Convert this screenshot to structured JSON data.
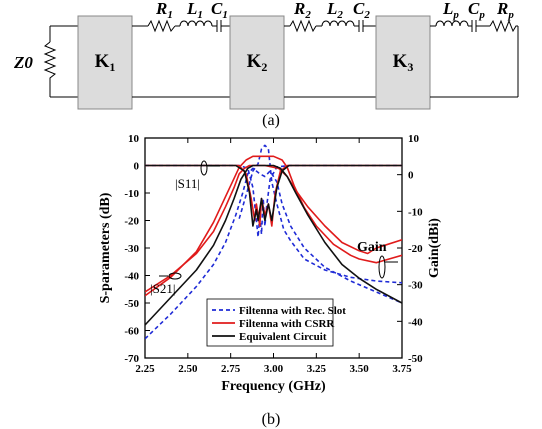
{
  "circuit": {
    "source": "Z0",
    "blocks": [
      {
        "name": "K",
        "sub": "1"
      },
      {
        "name": "K",
        "sub": "2"
      },
      {
        "name": "K",
        "sub": "3"
      }
    ],
    "components": [
      {
        "name": "R",
        "sub": "1",
        "kind": "resistor"
      },
      {
        "name": "L",
        "sub": "1",
        "kind": "inductor"
      },
      {
        "name": "C",
        "sub": "1",
        "kind": "capacitor"
      },
      {
        "name": "R",
        "sub": "2",
        "kind": "resistor"
      },
      {
        "name": "L",
        "sub": "2",
        "kind": "inductor"
      },
      {
        "name": "C",
        "sub": "2",
        "kind": "capacitor"
      },
      {
        "name": "L",
        "sub": "p",
        "kind": "inductor"
      },
      {
        "name": "C",
        "sub": "p",
        "kind": "capacitor"
      },
      {
        "name": "R",
        "sub": "p",
        "kind": "resistor"
      }
    ],
    "caption": "(a)"
  },
  "chart_caption": "(b)",
  "chart_data": {
    "type": "line",
    "xlabel": "Frequency (GHz)",
    "ylabel": "S-parameters (dB)",
    "y2label": "Gain(dBi)",
    "xlim": [
      2.25,
      3.75
    ],
    "ylim": [
      -70,
      10
    ],
    "y2lim": [
      -50,
      10
    ],
    "xticks": [
      "2.25",
      "2.50",
      "2.75",
      "3.00",
      "3.25",
      "3.50",
      "3.75"
    ],
    "yticks": [
      "10",
      "0",
      "-10",
      "-20",
      "-30",
      "-40",
      "-50",
      "-60",
      "-70"
    ],
    "y2ticks": [
      "10",
      "0",
      "-10",
      "-20",
      "-30",
      "-40",
      "-50"
    ],
    "legend_position": "bottom-center",
    "annotations": {
      "s11_label": "|S11|",
      "s21_label": "|S21|",
      "gain_label": "Gain"
    },
    "series": [
      {
        "name": "Filtenna with Rec. Slot",
        "color": "#1f2bd6",
        "dash": "dashed",
        "curves": [
          {
            "axis": "left",
            "role": "S21",
            "points": [
              [
                2.25,
                -63
              ],
              [
                2.4,
                -54
              ],
              [
                2.55,
                -44
              ],
              [
                2.65,
                -36
              ],
              [
                2.72,
                -28
              ],
              [
                2.78,
                -18
              ],
              [
                2.82,
                -10
              ],
              [
                2.85,
                -3
              ],
              [
                2.88,
                -1
              ],
              [
                2.92,
                -3
              ],
              [
                2.95,
                -4
              ],
              [
                2.98,
                -2
              ],
              [
                3.02,
                -6
              ],
              [
                3.05,
                -14
              ],
              [
                3.1,
                -22
              ],
              [
                3.18,
                -30
              ],
              [
                3.3,
                -37
              ],
              [
                3.45,
                -42
              ],
              [
                3.6,
                -46
              ],
              [
                3.75,
                -50
              ]
            ]
          },
          {
            "axis": "left",
            "role": "S11",
            "points": [
              [
                2.25,
                0
              ],
              [
                2.8,
                0
              ],
              [
                2.85,
                -1
              ],
              [
                2.88,
                -8
              ],
              [
                2.9,
                -20
              ],
              [
                2.91,
                -26
              ],
              [
                2.92,
                -18
              ],
              [
                2.93,
                -25
              ],
              [
                2.94,
                -12
              ],
              [
                2.95,
                -22
              ],
              [
                2.96,
                -15
              ],
              [
                2.98,
                -5
              ],
              [
                3.02,
                -0.5
              ],
              [
                3.1,
                0
              ],
              [
                3.75,
                0
              ]
            ]
          },
          {
            "axis": "right",
            "role": "Gain",
            "points": [
              [
                2.8,
                -12
              ],
              [
                2.85,
                -4
              ],
              [
                2.88,
                1
              ],
              [
                2.91,
                3
              ],
              [
                2.93,
                7
              ],
              [
                2.95,
                8
              ],
              [
                2.97,
                7
              ],
              [
                2.99,
                -2
              ],
              [
                3.02,
                -8
              ],
              [
                3.06,
                -15
              ],
              [
                3.1,
                -18
              ],
              [
                3.18,
                -23
              ],
              [
                3.3,
                -26
              ],
              [
                3.45,
                -28
              ],
              [
                3.6,
                -29
              ],
              [
                3.75,
                -29.5
              ]
            ]
          }
        ]
      },
      {
        "name": "Filtenna with CSRR",
        "color": "#e01b1b",
        "dash": "solid",
        "curves": [
          {
            "axis": "left",
            "role": "S21",
            "points": [
              [
                2.25,
                -46
              ],
              [
                2.4,
                -40
              ],
              [
                2.55,
                -32
              ],
              [
                2.65,
                -24
              ],
              [
                2.72,
                -15
              ],
              [
                2.77,
                -8
              ],
              [
                2.8,
                -3
              ],
              [
                2.83,
                -1
              ],
              [
                2.86,
                0
              ],
              [
                2.95,
                0
              ],
              [
                3.03,
                -1
              ],
              [
                3.08,
                -4
              ],
              [
                3.13,
                -9
              ],
              [
                3.2,
                -15
              ],
              [
                3.3,
                -22
              ],
              [
                3.4,
                -28
              ],
              [
                3.5,
                -31
              ],
              [
                3.55,
                -32
              ],
              [
                3.6,
                -30
              ],
              [
                3.75,
                -27
              ]
            ]
          },
          {
            "axis": "left",
            "role": "S11",
            "points": [
              [
                2.25,
                0
              ],
              [
                2.8,
                0
              ],
              [
                2.84,
                -3
              ],
              [
                2.87,
                -12
              ],
              [
                2.89,
                -20
              ],
              [
                2.9,
                -14
              ],
              [
                2.92,
                -22
              ],
              [
                2.93,
                -12
              ],
              [
                2.95,
                -18
              ],
              [
                2.97,
                -14
              ],
              [
                2.99,
                -22
              ],
              [
                3.01,
                -10
              ],
              [
                3.04,
                -2
              ],
              [
                3.08,
                0
              ],
              [
                3.75,
                0
              ]
            ]
          },
          {
            "axis": "right",
            "role": "Gain",
            "points": [
              [
                2.25,
                -33
              ],
              [
                2.4,
                -28
              ],
              [
                2.55,
                -21
              ],
              [
                2.65,
                -13
              ],
              [
                2.72,
                -6
              ],
              [
                2.77,
                -1
              ],
              [
                2.8,
                2
              ],
              [
                2.84,
                4
              ],
              [
                2.88,
                5
              ],
              [
                3.0,
                5
              ],
              [
                3.05,
                4
              ],
              [
                3.08,
                2
              ],
              [
                3.12,
                -3
              ],
              [
                3.18,
                -9
              ],
              [
                3.25,
                -14
              ],
              [
                3.35,
                -19
              ],
              [
                3.45,
                -22
              ],
              [
                3.5,
                -23
              ],
              [
                3.6,
                -24
              ],
              [
                3.75,
                -22
              ]
            ]
          }
        ]
      },
      {
        "name": "Equivalent Circuit",
        "color": "#111111",
        "dash": "solid",
        "curves": [
          {
            "axis": "left",
            "role": "S21",
            "points": [
              [
                2.25,
                -58
              ],
              [
                2.4,
                -48
              ],
              [
                2.55,
                -38
              ],
              [
                2.65,
                -29
              ],
              [
                2.72,
                -20
              ],
              [
                2.77,
                -12
              ],
              [
                2.81,
                -5
              ],
              [
                2.85,
                -1
              ],
              [
                2.88,
                0
              ],
              [
                3.0,
                0
              ],
              [
                3.04,
                -1
              ],
              [
                3.08,
                -4
              ],
              [
                3.13,
                -10
              ],
              [
                3.2,
                -18
              ],
              [
                3.3,
                -28
              ],
              [
                3.4,
                -36
              ],
              [
                3.5,
                -41
              ],
              [
                3.6,
                -45
              ],
              [
                3.75,
                -50
              ]
            ]
          },
          {
            "axis": "left",
            "role": "S11",
            "points": [
              [
                2.25,
                0
              ],
              [
                2.78,
                0
              ],
              [
                2.83,
                -2
              ],
              [
                2.86,
                -10
              ],
              [
                2.88,
                -22
              ],
              [
                2.9,
                -16
              ],
              [
                2.91,
                -20
              ],
              [
                2.93,
                -12
              ],
              [
                2.95,
                -20
              ],
              [
                2.97,
                -14
              ],
              [
                2.99,
                -20
              ],
              [
                3.02,
                -8
              ],
              [
                3.05,
                -2
              ],
              [
                3.09,
                0
              ],
              [
                3.75,
                0
              ]
            ]
          }
        ]
      }
    ]
  }
}
